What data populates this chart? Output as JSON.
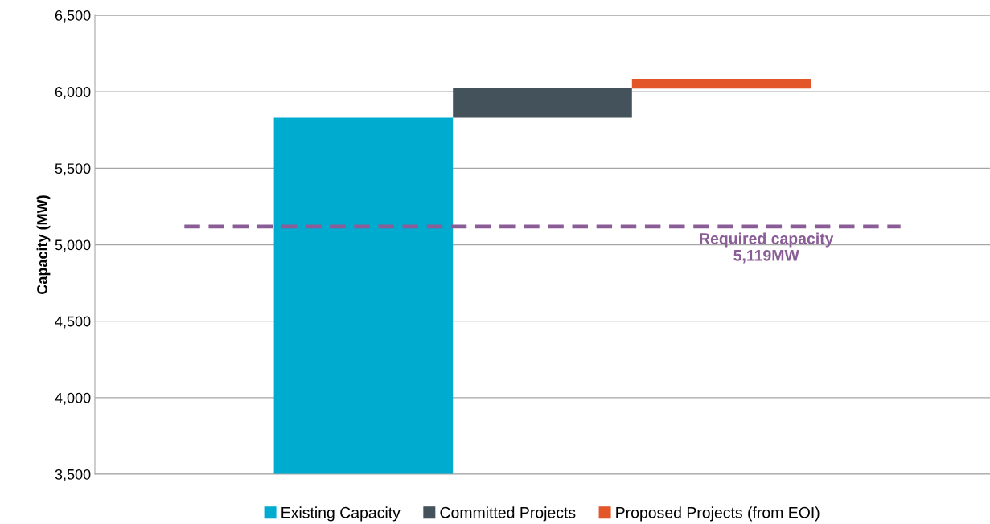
{
  "chart_data": {
    "type": "bar",
    "ylabel": "Capacity (MW)",
    "categories": [
      null,
      null,
      null,
      null,
      null
    ],
    "series": [
      {
        "name": "Existing Capacity",
        "color": "#00abd0",
        "values": [
          null,
          5830,
          null,
          null,
          null
        ]
      },
      {
        "name": "Committed Projects",
        "color": "#44525b",
        "values": [
          null,
          null,
          195,
          null,
          null
        ],
        "base": [
          null,
          null,
          5830,
          null,
          null
        ]
      },
      {
        "name": "Proposed Projects (from EOI)",
        "color": "#e2562a",
        "values": [
          null,
          null,
          null,
          65,
          null
        ],
        "base": [
          null,
          null,
          null,
          6020,
          null
        ]
      }
    ],
    "ylim": [
      3500,
      6500
    ],
    "yticks": [
      {
        "value": 3500,
        "label": "3,500"
      },
      {
        "value": 4000,
        "label": "4,000"
      },
      {
        "value": 4500,
        "label": "4,500"
      },
      {
        "value": 5000,
        "label": "5,000"
      },
      {
        "value": 5500,
        "label": "5,500"
      },
      {
        "value": 6000,
        "label": "6,000"
      },
      {
        "value": 6500,
        "label": "6,500"
      }
    ],
    "ref_lines": [
      {
        "axis": "y",
        "value": 5119,
        "label": "Required capacity\n5,119MW",
        "color": "#8a5d96",
        "line_style": "dashed"
      }
    ],
    "grid": "y",
    "legend": "bottom"
  }
}
